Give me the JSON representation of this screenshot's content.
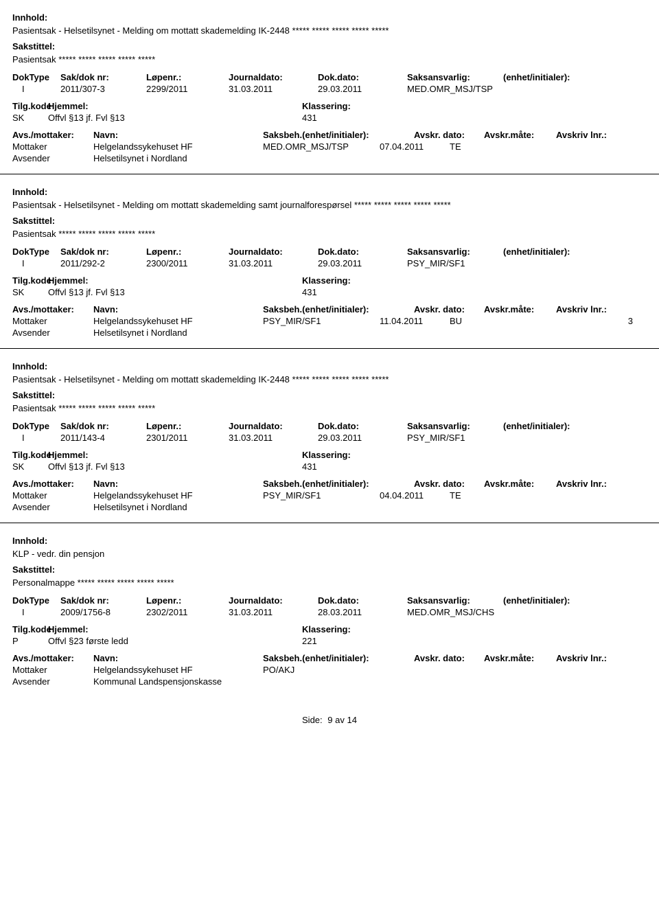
{
  "labels": {
    "innhold": "Innhold:",
    "sakstittel": "Sakstittel:",
    "doktype": "DokType",
    "sakdok": "Sak/dok nr:",
    "lopenr": "Løpenr.:",
    "journaldato": "Journaldato:",
    "dokdato": "Dok.dato:",
    "saksansvarlig": "Saksansvarlig:",
    "enhet": "(enhet/initialer):",
    "tilgkode": "Tilg.kode",
    "hjemmel": "Hjemmel:",
    "klassering": "Klassering:",
    "avsmottaker": "Avs./mottaker:",
    "navn": "Navn:",
    "saksbeh": "Saksbeh.(enhet/initialer):",
    "avskrdato": "Avskr. dato:",
    "avskrmate": "Avskr.måte:",
    "avskrlnr": "Avskriv lnr.:",
    "mottaker": "Mottaker",
    "avsender": "Avsender"
  },
  "footer": {
    "side_label": "Side:",
    "page": "9",
    "sep": "av",
    "total": "14"
  },
  "records": [
    {
      "innhold": "Pasientsak - Helsetilsynet - Melding om mottatt skademelding IK-2448 ***** ***** ***** ***** *****",
      "sakstittel": "Pasientsak ***** ***** ***** ***** *****",
      "doktype": "I",
      "sakdok": "2011/307-3",
      "lopenr": "2299/2011",
      "journaldato": "31.03.2011",
      "dokdato": "29.03.2011",
      "saksansvarlig": "MED.OMR_MSJ/TSP",
      "enhet": "",
      "tilgkode": "SK",
      "hjemmel": "Offvl §13 jf. Fvl §13",
      "klassering": "431",
      "show_party_header": false,
      "mottaker_navn": "Helgelandssykehuset HF",
      "mottaker_saksbeh": "MED.OMR_MSJ/TSP",
      "mottaker_avskrdato": "07.04.2011",
      "mottaker_avskrmate": "TE",
      "mottaker_avskrlnr": "",
      "avsender_navn": "Helsetilsynet i Nordland"
    },
    {
      "innhold": "Pasientsak  - Helsetilsynet - Melding om mottatt skademelding samt journalforespørsel *****  ***** ***** ***** *****",
      "sakstittel": "Pasientsak  *****  ***** ***** ***** *****",
      "doktype": "I",
      "sakdok": "2011/292-2",
      "lopenr": "2300/2011",
      "journaldato": "31.03.2011",
      "dokdato": "29.03.2011",
      "saksansvarlig": "PSY_MIR/SF1",
      "enhet": "",
      "tilgkode": "SK",
      "hjemmel": "Offvl §13 jf. Fvl §13",
      "klassering": "431",
      "show_party_header": false,
      "mottaker_navn": "Helgelandssykehuset HF",
      "mottaker_saksbeh": "PSY_MIR/SF1",
      "mottaker_avskrdato": "11.04.2011",
      "mottaker_avskrmate": "BU",
      "mottaker_avskrlnr": "3",
      "avsender_navn": "Helsetilsynet i Nordland"
    },
    {
      "innhold": "Pasientsak - Helsetilsynet - Melding om mottatt skademelding IK-2448 ***** ***** ***** ***** *****",
      "sakstittel": "Pasientsak ***** ***** ***** ***** *****",
      "doktype": "I",
      "sakdok": "2011/143-4",
      "lopenr": "2301/2011",
      "journaldato": "31.03.2011",
      "dokdato": "29.03.2011",
      "saksansvarlig": "PSY_MIR/SF1",
      "enhet": "",
      "tilgkode": "SK",
      "hjemmel": "Offvl §13 jf. Fvl §13",
      "klassering": "431",
      "show_party_header": true,
      "mottaker_navn": "Helgelandssykehuset HF",
      "mottaker_saksbeh": "PSY_MIR/SF1",
      "mottaker_avskrdato": "04.04.2011",
      "mottaker_avskrmate": "TE",
      "mottaker_avskrlnr": "",
      "avsender_navn": "Helsetilsynet i Nordland"
    },
    {
      "innhold": "KLP - vedr. din pensjon",
      "sakstittel": "Personalmappe ***** ***** ***** ***** *****",
      "doktype": "I",
      "sakdok": "2009/1756-8",
      "lopenr": "2302/2011",
      "journaldato": "31.03.2011",
      "dokdato": "28.03.2011",
      "saksansvarlig": "MED.OMR_MSJ/CHS",
      "enhet": "",
      "tilgkode": "P",
      "hjemmel": "Offvl §23 første ledd",
      "klassering": "221",
      "show_party_header": true,
      "mottaker_navn": "Helgelandssykehuset HF",
      "mottaker_saksbeh": "PO/AKJ",
      "mottaker_avskrdato": "",
      "mottaker_avskrmate": "",
      "mottaker_avskrlnr": "",
      "avsender_navn": "Kommunal Landspensjonskasse"
    }
  ]
}
